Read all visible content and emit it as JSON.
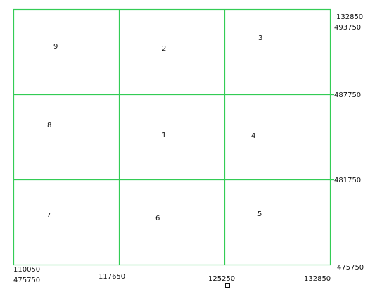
{
  "colors": {
    "grid_line": "#33cc55",
    "text": "#111111",
    "background": "#ffffff"
  },
  "grid": {
    "columns": 3,
    "rows": 3,
    "cells": [
      {
        "row": 0,
        "col": 0,
        "label": "9"
      },
      {
        "row": 0,
        "col": 1,
        "label": "2"
      },
      {
        "row": 0,
        "col": 2,
        "label": "3"
      },
      {
        "row": 1,
        "col": 0,
        "label": "8"
      },
      {
        "row": 1,
        "col": 1,
        "label": "1"
      },
      {
        "row": 1,
        "col": 2,
        "label": "4"
      },
      {
        "row": 2,
        "col": 0,
        "label": "7"
      },
      {
        "row": 2,
        "col": 1,
        "label": "6"
      },
      {
        "row": 2,
        "col": 2,
        "label": "5"
      }
    ]
  },
  "coordinates": {
    "top_right_x": "132850",
    "top_right_y": "493750",
    "line_y1": "487750",
    "line_y2": "481750",
    "bottom_right_y": "475750",
    "bottom_left_x": "110050",
    "bottom_left_y": "475750",
    "bottom_x1": "117650",
    "bottom_x2": "125250",
    "bottom_right_x": "132850"
  }
}
